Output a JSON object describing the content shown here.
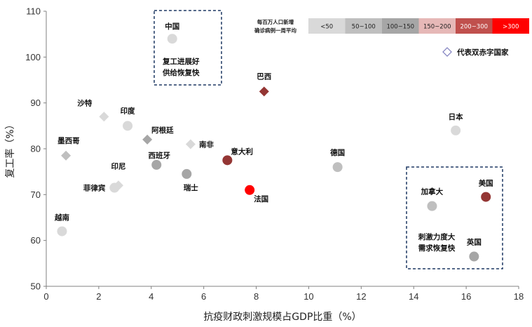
{
  "chart_data": {
    "type": "scatter",
    "title": "",
    "xlabel": "抗疫财政刺激规模占GDP比重（%）",
    "ylabel": "复工率（%）",
    "xlim": [
      0,
      18
    ],
    "ylim": [
      50,
      110
    ],
    "x_ticks": [
      0,
      2,
      4,
      6,
      8,
      10,
      12,
      14,
      16,
      18
    ],
    "y_ticks": [
      50,
      60,
      70,
      80,
      90,
      100,
      110
    ],
    "grid": false,
    "legend": {
      "title_line1": "每百万人口新增",
      "title_line2": "确诊病例一周平均",
      "position": "top-right",
      "categories": [
        {
          "label": "<50",
          "color": "#d9d9d9"
        },
        {
          "label": "50~100",
          "color": "#bfbfbf"
        },
        {
          "label": "100~150",
          "color": "#a6a6a6"
        },
        {
          "label": "150~200",
          "color": "#e6b8b7"
        },
        {
          "label": "200~300",
          "color": "#c0504d"
        },
        {
          "label": ">300",
          "color": "#ff0000"
        }
      ],
      "marker_note": "代表双赤字国家"
    },
    "points": [
      {
        "name": "中国",
        "x": 4.8,
        "y": 104,
        "marker": "circle",
        "color": "#d9d9d9"
      },
      {
        "name": "巴西",
        "x": 8.3,
        "y": 92.5,
        "marker": "diamond",
        "color": "#943634"
      },
      {
        "name": "沙特",
        "x": 2.2,
        "y": 87,
        "marker": "diamond",
        "color": "#d9d9d9"
      },
      {
        "name": "印度",
        "x": 3.1,
        "y": 85,
        "marker": "circle",
        "color": "#d9d9d9"
      },
      {
        "name": "阿根廷",
        "x": 3.85,
        "y": 82,
        "marker": "diamond",
        "color": "#a6a6a6"
      },
      {
        "name": "南非",
        "x": 5.5,
        "y": 81,
        "marker": "diamond",
        "color": "#d9d9d9"
      },
      {
        "name": "墨西哥",
        "x": 0.75,
        "y": 78.5,
        "marker": "diamond",
        "color": "#bfbfbf"
      },
      {
        "name": "西班牙",
        "x": 4.2,
        "y": 76.5,
        "marker": "circle",
        "color": "#a6a6a6"
      },
      {
        "name": "意大利",
        "x": 6.9,
        "y": 77.5,
        "marker": "circle",
        "color": "#943634"
      },
      {
        "name": "德国",
        "x": 11.1,
        "y": 76,
        "marker": "circle",
        "color": "#bfbfbf"
      },
      {
        "name": "日本",
        "x": 15.6,
        "y": 84,
        "marker": "circle",
        "color": "#d9d9d9"
      },
      {
        "name": "瑞士",
        "x": 5.35,
        "y": 74.5,
        "marker": "circle",
        "color": "#a6a6a6"
      },
      {
        "name": "印尼",
        "x": 2.75,
        "y": 72,
        "marker": "diamond",
        "color": "#d9d9d9"
      },
      {
        "name": "菲律宾",
        "x": 2.6,
        "y": 71.5,
        "marker": "circle",
        "color": "#d9d9d9"
      },
      {
        "name": "法国",
        "x": 7.75,
        "y": 71,
        "marker": "circle",
        "color": "#ff0000"
      },
      {
        "name": "加拿大",
        "x": 14.7,
        "y": 67.5,
        "marker": "circle",
        "color": "#bfbfbf"
      },
      {
        "name": "美国",
        "x": 16.75,
        "y": 69.5,
        "marker": "circle",
        "color": "#943634"
      },
      {
        "name": "英国",
        "x": 16.3,
        "y": 56.5,
        "marker": "circle",
        "color": "#a6a6a6"
      },
      {
        "name": "越南",
        "x": 0.6,
        "y": 62,
        "marker": "circle",
        "color": "#d9d9d9"
      }
    ],
    "annotations": [
      {
        "id": "china-box",
        "lines": [
          "复工进展好",
          "供给恢复快"
        ]
      },
      {
        "id": "us-box",
        "lines": [
          "刺激力度大",
          "需求恢复快"
        ]
      }
    ]
  }
}
